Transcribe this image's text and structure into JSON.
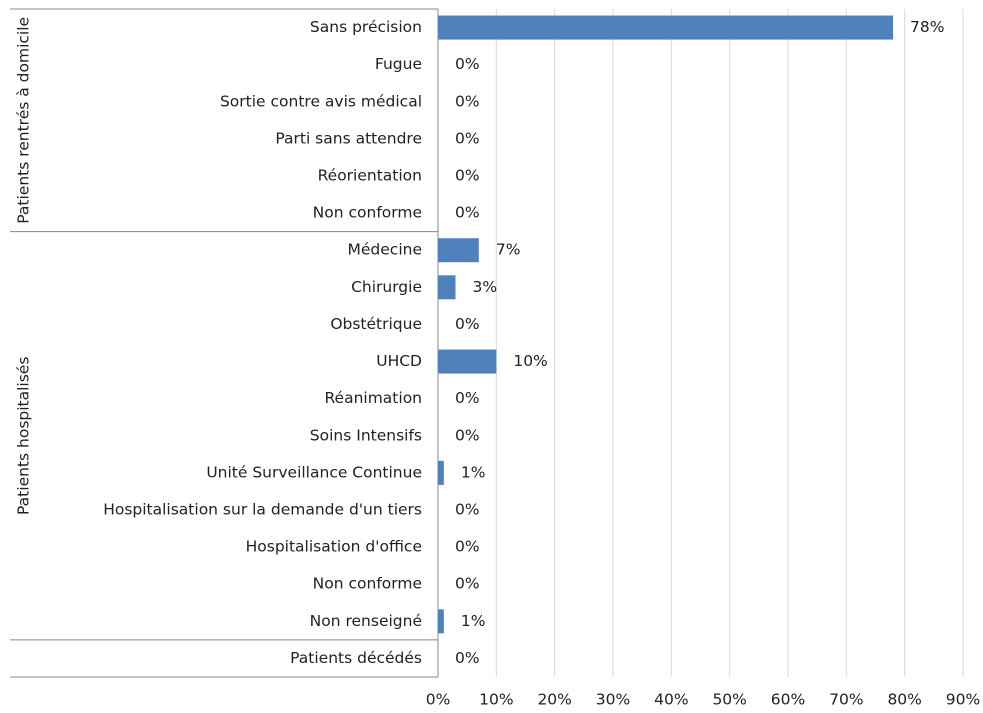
{
  "chart_data": {
    "type": "bar",
    "orientation": "horizontal",
    "color": "#4f81bd",
    "grid": true,
    "groups": [
      {
        "name": "Patients rentrés à domicile",
        "categories": [
          "Sans précision",
          "Fugue",
          "Sortie contre avis médical",
          "Parti sans attendre",
          "Réorientation",
          "Non conforme"
        ],
        "values": [
          78,
          0,
          0,
          0,
          0,
          0
        ],
        "value_labels": [
          "78%",
          "0%",
          "0%",
          "0%",
          "0%",
          "0%"
        ]
      },
      {
        "name": "Patients hospitalisés",
        "categories": [
          "Médecine",
          "Chirurgie",
          "Obstétrique",
          "UHCD",
          "Réanimation",
          "Soins Intensifs",
          "Unité Surveillance Continue",
          "Hospitalisation sur la demande d'un tiers",
          "Hospitalisation d'office",
          "Non conforme",
          "Non renseigné"
        ],
        "values": [
          7,
          3,
          0,
          10,
          0,
          0,
          1,
          0,
          0,
          0,
          1
        ],
        "value_labels": [
          "7%",
          "3%",
          "0%",
          "10%",
          "0%",
          "0%",
          "1%",
          "0%",
          "0%",
          "0%",
          "1%"
        ]
      },
      {
        "categories": [
          "Patients décédés"
        ],
        "values": [
          0
        ],
        "value_labels": [
          "0%"
        ]
      }
    ],
    "xlim": [
      0,
      90
    ],
    "xticks": [
      {
        "value": 0,
        "label": "0%"
      },
      {
        "value": 10,
        "label": "10%"
      },
      {
        "value": 20,
        "label": "20%"
      },
      {
        "value": 30,
        "label": "30%"
      },
      {
        "value": 40,
        "label": "40%"
      },
      {
        "value": 50,
        "label": "50%"
      },
      {
        "value": 60,
        "label": "60%"
      },
      {
        "value": 70,
        "label": "70%"
      },
      {
        "value": 80,
        "label": "80%"
      },
      {
        "value": 90,
        "label": "90%"
      }
    ]
  }
}
